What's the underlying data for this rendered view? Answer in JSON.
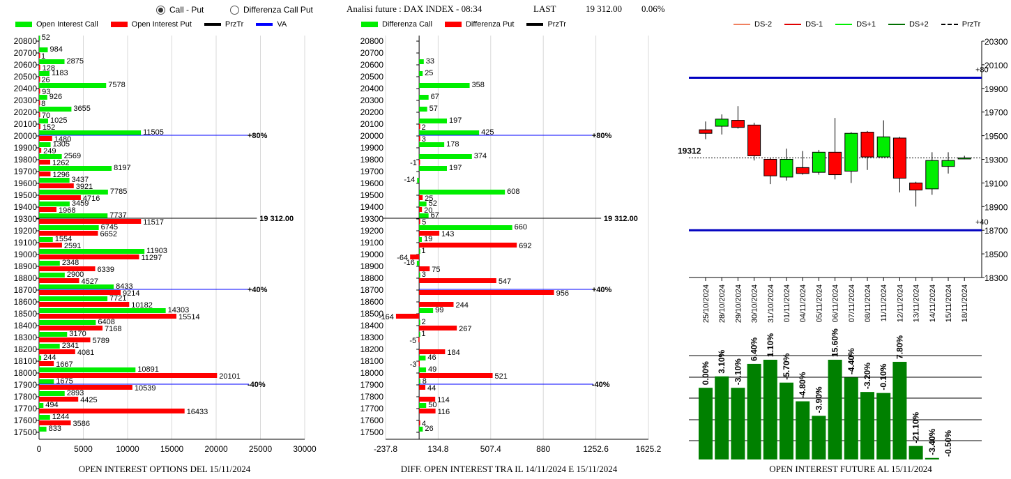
{
  "header": {
    "radio_call_put": "Call - Put",
    "radio_diff": "Differenza Call Put",
    "analisi": "Analisi future : DAX INDEX - 08:34",
    "last_label": "LAST",
    "last_value": "19 312.00",
    "last_pct": "0.06%"
  },
  "legend_left": [
    {
      "label": "Open Interest Call",
      "color": "#00ee00"
    },
    {
      "label": "Open Interest Put",
      "color": "#ff0000"
    },
    {
      "label": "PrzTr",
      "color": "#000000"
    },
    {
      "label": "VA",
      "color": "#0000ff"
    }
  ],
  "legend_mid": [
    {
      "label": "Differenza Call",
      "color": "#00ee00"
    },
    {
      "label": "Differenza Put",
      "color": "#ff0000"
    },
    {
      "label": "PrzTr",
      "color": "#000000"
    }
  ],
  "legend_right": [
    {
      "label": "DS-2",
      "color": "#f08060"
    },
    {
      "label": "DS-1",
      "color": "#e00000"
    },
    {
      "label": "DS+1",
      "color": "#00ee00"
    },
    {
      "label": "DS+2",
      "color": "#007000"
    },
    {
      "label": "PrzTr",
      "color": "#000000"
    }
  ],
  "captions": {
    "left": "OPEN INTEREST OPTIONS DEL 15/11/2024",
    "mid": "DIFF. OPEN INTEREST TRA IL 14/11/2024 E 15/11/2024",
    "right": "OPEN INTEREST FUTURE AL 15/11/2024"
  },
  "chart_data": [
    {
      "type": "bar",
      "orientation": "horizontal",
      "strikes": [
        "20800",
        "20700",
        "20600",
        "20500",
        "20400",
        "20300",
        "20200",
        "20100",
        "20000",
        "19900",
        "19800",
        "19700",
        "19600",
        "19500",
        "19400",
        "19300",
        "19200",
        "19100",
        "19000",
        "18900",
        "18800",
        "18700",
        "18600",
        "18500",
        "18400",
        "18300",
        "18200",
        "18100",
        "18000",
        "17900",
        "17800",
        "17700",
        "17600",
        "17500"
      ],
      "series": [
        {
          "name": "Open Interest Call",
          "values": [
            52,
            984,
            2875,
            1183,
            7578,
            926,
            3655,
            1025,
            11505,
            1305,
            2569,
            8197,
            3437,
            7785,
            3459,
            7737,
            6745,
            1554,
            11903,
            2348,
            2900,
            8433,
            7721,
            14303,
            6408,
            3170,
            2341,
            244,
            10891,
            1675,
            2893,
            494,
            1244,
            833
          ]
        },
        {
          "name": "Open Interest Put",
          "values": [
            null,
            1,
            128,
            26,
            93,
            8,
            70,
            152,
            1480,
            249,
            1262,
            1296,
            3921,
            4716,
            1968,
            11517,
            6652,
            2591,
            11297,
            6339,
            4527,
            9214,
            10182,
            15514,
            7168,
            5789,
            4081,
            1667,
            20101,
            10539,
            4425,
            16433,
            3586,
            null
          ]
        }
      ],
      "xlim": [
        0,
        30000
      ],
      "xticks": [
        "0",
        "5000",
        "10000",
        "15000",
        "20000",
        "25000",
        "30000"
      ],
      "markers": [
        {
          "strike": "20000",
          "label": "+80%",
          "color": "#0000ff"
        },
        {
          "strike": "18700",
          "label": "+40%",
          "color": "#0000ff"
        },
        {
          "strike": "17900",
          "label": "-40%",
          "color": "#0000ff"
        },
        {
          "strike": "19300",
          "label": "19 312.00",
          "color": "#000000"
        }
      ]
    },
    {
      "type": "bar",
      "orientation": "horizontal",
      "strikes": [
        "20800",
        "20700",
        "20600",
        "20500",
        "20400",
        "20300",
        "20200",
        "20100",
        "20000",
        "19900",
        "19800",
        "19700",
        "19600",
        "19500",
        "19400",
        "19300",
        "19200",
        "19100",
        "19000",
        "18900",
        "18800",
        "18700",
        "18600",
        "18500",
        "18400",
        "18300",
        "18200",
        "18100",
        "18000",
        "17900",
        "17800",
        "17700",
        "17600",
        "17500"
      ],
      "series": [
        {
          "name": "Differenza Call",
          "values": [
            null,
            null,
            33,
            25,
            358,
            67,
            57,
            197,
            425,
            178,
            374,
            197,
            -14,
            608,
            52,
            67,
            660,
            19,
            1,
            -16,
            3,
            null,
            null,
            99,
            2,
            1,
            null,
            46,
            49,
            8,
            null,
            50,
            null,
            26
          ]
        },
        {
          "name": "Differenza Put",
          "values": [
            null,
            null,
            null,
            null,
            null,
            null,
            null,
            2,
            3,
            null,
            -1,
            null,
            null,
            25,
            20,
            5,
            143,
            692,
            -64,
            75,
            547,
            956,
            244,
            -164,
            267,
            -5,
            184,
            -3,
            521,
            44,
            114,
            116,
            4,
            null
          ]
        }
      ],
      "xlim": [
        -237.8,
        1625.2
      ],
      "xticks": [
        "-237.8",
        "134.8",
        "507.4",
        "880",
        "1252.6",
        "1625.2"
      ],
      "markers": [
        {
          "strike": "20000",
          "label": "+80%",
          "color": "#0000ff"
        },
        {
          "strike": "18700",
          "label": "+40%",
          "color": "#0000ff"
        },
        {
          "strike": "17900",
          "label": "-40%",
          "color": "#0000ff"
        },
        {
          "strike": "19300",
          "label": "19 312.00",
          "color": "#000000"
        }
      ]
    },
    {
      "type": "candlestick",
      "dates": [
        "25/10/2024",
        "28/10/2024",
        "29/10/2024",
        "30/10/2024",
        "31/10/2024",
        "01/11/2024",
        "04/11/2024",
        "05/11/2024",
        "06/11/2024",
        "07/11/2024",
        "08/11/2024",
        "11/11/2024",
        "12/11/2024",
        "13/11/2024",
        "14/11/2024",
        "15/11/2024",
        "18/11/2024"
      ],
      "candles": [
        {
          "o": 19550,
          "h": 19620,
          "l": 19470,
          "c": 19520
        },
        {
          "o": 19580,
          "h": 19680,
          "l": 19510,
          "c": 19640
        },
        {
          "o": 19630,
          "h": 19750,
          "l": 19560,
          "c": 19570
        },
        {
          "o": 19590,
          "h": 19610,
          "l": 19290,
          "c": 19330
        },
        {
          "o": 19300,
          "h": 19310,
          "l": 19090,
          "c": 19160
        },
        {
          "o": 19150,
          "h": 19390,
          "l": 19120,
          "c": 19300
        },
        {
          "o": 19230,
          "h": 19370,
          "l": 19170,
          "c": 19180
        },
        {
          "o": 19190,
          "h": 19380,
          "l": 19170,
          "c": 19360
        },
        {
          "o": 19360,
          "h": 19650,
          "l": 19130,
          "c": 19170
        },
        {
          "o": 19200,
          "h": 19530,
          "l": 19100,
          "c": 19520
        },
        {
          "o": 19530,
          "h": 19540,
          "l": 19210,
          "c": 19320
        },
        {
          "o": 19320,
          "h": 19630,
          "l": 19320,
          "c": 19490
        },
        {
          "o": 19480,
          "h": 19490,
          "l": 19020,
          "c": 19140
        },
        {
          "o": 19100,
          "h": 19110,
          "l": 18900,
          "c": 19040
        },
        {
          "o": 19050,
          "h": 19360,
          "l": 19000,
          "c": 19290
        },
        {
          "o": 19240,
          "h": 19360,
          "l": 19180,
          "c": 19290
        },
        {
          "o": 19310,
          "h": 19330,
          "l": 19300,
          "c": 19312
        }
      ],
      "ylim": [
        18300,
        20300
      ],
      "yticks": [
        "20300",
        "20100",
        "19900",
        "19700",
        "19500",
        "19300",
        "19100",
        "18900",
        "18700",
        "18500",
        "18300"
      ],
      "hlines": [
        {
          "y": 19990,
          "label": "+80",
          "color": "#0000c0"
        },
        {
          "y": 18700,
          "label": "+40",
          "color": "#0000c0"
        }
      ],
      "price_line": {
        "y": 19312,
        "label": "19312"
      }
    },
    {
      "type": "bar",
      "categories": [
        "25/10/2024",
        "28/10/2024",
        "29/10/2024",
        "30/10/2024",
        "31/10/2024",
        "01/11/2024",
        "04/11/2024",
        "05/11/2024",
        "06/11/2024",
        "07/11/2024",
        "08/11/2024",
        "11/11/2024",
        "12/11/2024",
        "13/11/2024",
        "14/11/2024",
        "15/11/2024",
        "18/11/2024"
      ],
      "values": [
        0.0,
        3.1,
        -3.1,
        6.4,
        1.1,
        -5.7,
        -4.8,
        -3.9,
        15.6,
        -4.4,
        -3.2,
        -0.1,
        7.8,
        -21.1,
        -3.4,
        -0.5,
        null
      ],
      "labels": [
        "0.00%",
        "3.10%",
        "-3.10%",
        "6.40%",
        "1.10%",
        "-5.70%",
        "-4.80%",
        "-3.90%",
        "15.60%",
        "-4.40%",
        "-3.20%",
        "-0.10%",
        "7.80%",
        "-21.10%",
        "-3.40%",
        "-0.50%",
        ""
      ],
      "relative_heights": [
        0.69,
        0.8,
        0.69,
        0.92,
        0.96,
        0.74,
        0.56,
        0.42,
        0.96,
        0.79,
        0.65,
        0.64,
        0.94,
        0.13,
        0.015,
        0,
        0
      ]
    }
  ]
}
